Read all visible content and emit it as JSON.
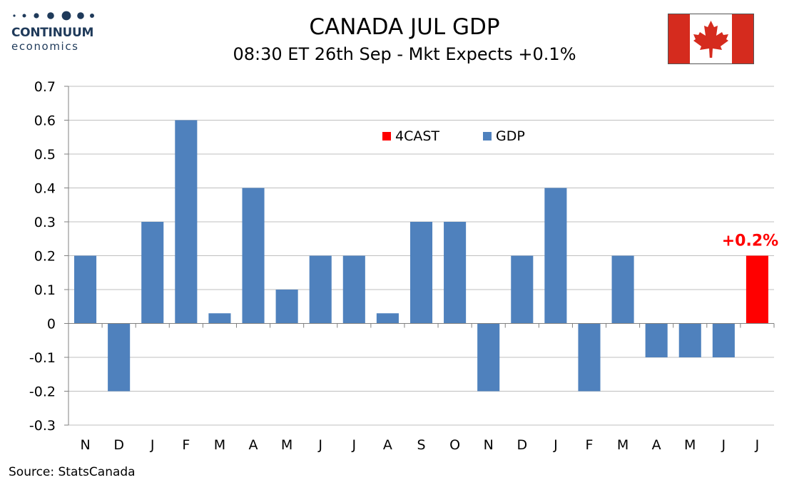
{
  "brand": {
    "name": "CONTINUUM",
    "sub": "economics",
    "color": "#1f3a5a"
  },
  "header": {
    "title": "CANADA JUL GDP",
    "subtitle": "08:30 ET 26th Sep - Mkt Expects +0.1%"
  },
  "flag": {
    "icon": "canada-flag-icon",
    "red": "#d52b1e"
  },
  "source": "Source: StatsCanada",
  "chart_data": {
    "type": "bar",
    "categories": [
      "N",
      "D",
      "J",
      "F",
      "M",
      "A",
      "M",
      "J",
      "J",
      "A",
      "S",
      "O",
      "N",
      "D",
      "J",
      "F",
      "M",
      "A",
      "M",
      "J",
      "J"
    ],
    "series": [
      {
        "name": "GDP",
        "color": "#4f81bd",
        "values": [
          0.2,
          -0.2,
          0.3,
          0.6,
          0.03,
          0.4,
          0.1,
          0.2,
          0.2,
          0.03,
          0.3,
          0.3,
          -0.2,
          0.2,
          0.4,
          -0.2,
          0.2,
          -0.1,
          -0.1,
          -0.1,
          null
        ]
      },
      {
        "name": "4CAST",
        "color": "#ff0000",
        "values": [
          null,
          null,
          null,
          null,
          null,
          null,
          null,
          null,
          null,
          null,
          null,
          null,
          null,
          null,
          null,
          null,
          null,
          null,
          null,
          null,
          0.2
        ]
      }
    ],
    "annotation": {
      "text": "+0.2%",
      "category_index": 20,
      "value": 0.2,
      "color": "#ff0000"
    },
    "ylim": [
      -0.3,
      0.7
    ],
    "yticks": [
      "0.7",
      "0.6",
      "0.5",
      "0.4",
      "0.3",
      "0.2",
      "0.1",
      "0",
      "-0.1",
      "-0.2",
      "-0.3"
    ],
    "ytick_values": [
      0.7,
      0.6,
      0.5,
      0.4,
      0.3,
      0.2,
      0.1,
      0,
      -0.1,
      -0.2,
      -0.3
    ],
    "grid": true,
    "legend_position": "top-center",
    "xlabel": "",
    "ylabel": ""
  }
}
